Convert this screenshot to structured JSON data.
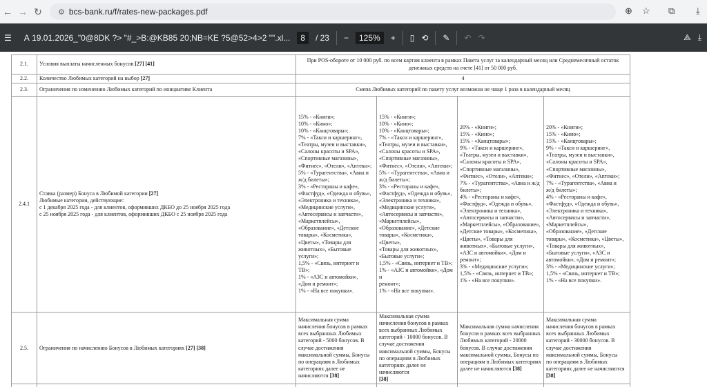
{
  "browser": {
    "url": "bcs-bank.ru/f/rates-new-packages.pdf"
  },
  "pdf_toolbar": {
    "title": "А 19.01.2026_\"0@8DK ?> \"#_>B:@KB85 20;NB=KE ?5@52>4>2 \"\".xl...",
    "page_current": "8",
    "page_total": "/ 23",
    "zoom": "125%"
  },
  "table": {
    "rows": [
      {
        "num": "2.1.",
        "label": "Условия выплаты начисленных бонусов",
        "refs": "[27] [41]",
        "value": "При POS-обороте от 10 000 руб. по всем картам клиента в рамках Пакета услуг за календарный месяц или Среднемесячный остаток денежных средств на счете [41] от 50 000 руб."
      },
      {
        "num": "2.2.",
        "label": "Количество Любимых категорий на выбор",
        "refs": "[27]",
        "value": "4"
      },
      {
        "num": "2.3.",
        "label": "Ограничения по изменению Любимых категорий по инициативе Клиента",
        "refs": "",
        "value": "Смена Любимых категорий по пакету услуг возможна не чаще 1 раза в календарный месяц"
      }
    ],
    "row_241": {
      "num": "2.4.1",
      "label": "Ставка (размер) Бонуса в Любимой категории",
      "refs": "[27]",
      "label_extra": "Любимые категории, действующие:\nс 1 декабря 2025 года - для клиентов, оформивших ДКБО до 25 ноября 2025 года\nс 25 ноября 2025 года - для клиентов, оформивших ДКБО с 25 ноября 2025 года",
      "values": [
        "15% - «Книги»;\n10% - «Кино»;\n10% - «Канцтовары»;\n7% - «Такси и каршеринг»,\n«Театры, музеи и выставки»,\n«Салоны красоты и SPA»,\n«Спортивные магазины»,\n«Фитнес», «Отели», «Аптеки»;\n5% - «Турагентства», «Авиа и\nж/д билеты»;\n3% - «Рестораны и кафе»,\n«Фастфуд», «Одежда и обувь»,\n«Электроника и техника»,\n«Медицинские услуги»,\n«Автосервисы и запчасти»,\n«Маркетплейсы»,\n«Образование», «Детские\nтовары», «Косметика»,\n«Цветы», «Товары для\nживотных», «Бытовые\nуслуги»;\n1,5% - «Связь, интернет и\nТВ»;\n1% - «АЗС и автомойки»,\n«Дом и ремонт»;\n1% - «На все покупки».",
        "15% - «Книги»;\n10% - «Кино»;\n10% - «Канцтовары»;\n7% - «Такси и каршеринг»,\n«Театры, музеи и выставки»,\n«Салоны красоты и SPA»,\n«Спортивные магазины»,\n«Фитнес», «Отели», «Аптеки»;\n5% - «Турагентства», «Авиа и\nж/д билеты»;\n3% - «Рестораны и кафе»,\n«Фастфуд», «Одежда и обувь»,\n«Электроника и техника»,\n«Медицинские услуги»,\n«Автосервисы и запчасти»,\n«Маркетплейсы»,\n«Образование», «Детские\nтовары», «Косметика», «Цветы»,\n«Товары для животных»,\n«Бытовые услуги»;\n1,5% - «Связь, интернет и ТВ»;\n1% - «АЗС и автомойки», «Дом и\nремонт»;\n1% - «На все покупки».",
        "20% - «Книги»;\n15% - «Кино»;\n15% - «Канцтовары»;\n9% - «Такси и каршеринг»,\n«Театры, музеи и выставки»,\n«Салоны красоты и SPA»,\n«Спортивные магазины»,\n«Фитнес», «Отели», «Аптеки»;\n7% - «Турагентства», «Авиа и ж/д\nбилеты»;\n4% - «Рестораны и кафе»,\n«Фастфуд», «Одежда и обувь»,\n«Электроника и техника»,\n«Автосервисы и запчасти»,\n«Маркетплейсы», «Образование»,\n«Детские товары», «Косметика»,\n«Цветы», «Товары для\nживотных», «Бытовые услуги»,\n«АЗС и автомойки», «Дом и\nремонт»;\n3% - «Медицинские услуги»;\n1,5% - «Связь, интернет и ТВ»;\n1% - «На все покупки».",
        "20% - «Книги»;\n15% - «Кино»;\n15% - «Канцтовары»;\n9% - «Такси и каршеринг»,\n«Театры, музеи и выставки»,\n«Салоны красоты и SPA»,\n«Спортивные магазины»,\n«Фитнес», «Отели», «Аптеки»;\n7% - «Турагентства», «Авиа и\nж/д билеты»;\n4% - «Рестораны и кафе»,\n«Фастфуд», «Одежда и обувь»,\n«Электроника и техника»,\n«Автосервисы и запчасти»,\n«Маркетплейсы»,\n«Образование», «Детские\nтовары», «Косметика», «Цветы»,\n«Товары для животных»,\n«Бытовые услуги», «АЗС и\nавтомойки», «Дом и ремонт»;\n3% - «Медицинские услуги»;\n1,5% - «Связь, интернет и ТВ»;\n1% - «На все покупки»."
      ]
    },
    "row_25": {
      "num": "2.5.",
      "label": "Ограничения по начислению Бонусов в Любимых категориях",
      "refs": "[27] [38]",
      "values": [
        "Максимальная сумма\nначисления бонусов в рамках\nвсех выбранных Любимых\nкатегорий - 5000 бонусов. В\nслучае достижения\nмаксимальной суммы, Бонусы\nпо операциям в Любимых\nкатегориях далее не\nначисляются",
        "Максимальная сумма\nначисления бонусов в рамках\nвсех выбранных Любимых\nкатегорий - 10000 бонусов.    В\nслучае достижения\nмаксимальной суммы, Бонусы\nпо операциям в Любимых\nкатегориях далее не начисляются",
        "Максимальная сумма начисления\nбонусов в рамках всех выбранных\nЛюбимых категорий - 20000\nбонусов.  В случае достижения\nмаксимальной суммы, Бонусы по\nоперациям в Любимых категориях\nдалее не начисляются",
        "Максимальная сумма\nначисления бонусов в рамках\nвсех выбранных Любимых\nкатегорий - 30000 бонусов.  В\nслучае достижения\nмаксимальной суммы, Бонусы\nпо операциям в Любимых\nкатегориях далее не начисляются"
      ],
      "ref": "[38]"
    }
  }
}
